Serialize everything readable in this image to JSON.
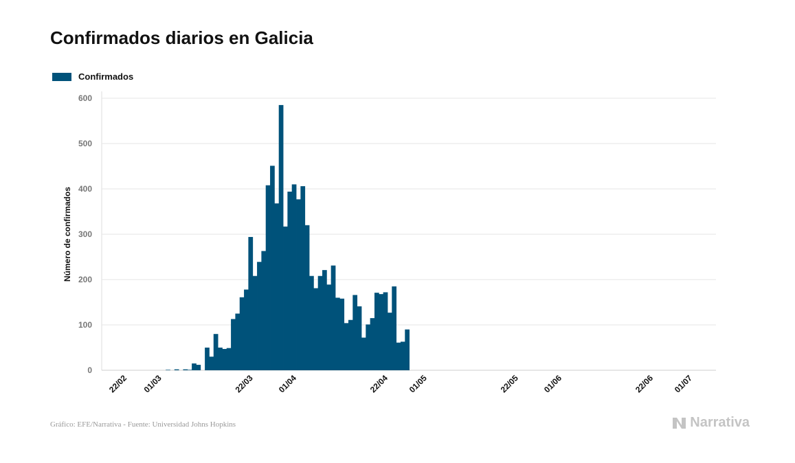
{
  "header": {
    "title": "Confirmados diarios en Galicia"
  },
  "legend": {
    "label": "Confirmados",
    "color": "#00527a"
  },
  "footer": {
    "source": "Gráfico: EFE/Narrativa - Fuente: Universidad Johns Hopkins",
    "brand": "Narrativa"
  },
  "chart_data": {
    "type": "bar",
    "title": "Confirmados diarios en Galicia",
    "ylabel": "Número de confirmados",
    "xlabel": "",
    "ylim": [
      0,
      600
    ],
    "yticks": [
      0,
      100,
      200,
      300,
      400,
      500,
      600
    ],
    "x_tick_labels": [
      "22/02",
      "01/03",
      "22/03",
      "01/04",
      "22/04",
      "01/05",
      "22/05",
      "01/06",
      "22/06",
      "01/07"
    ],
    "grid": true,
    "legend_position": "top-left",
    "color": "#00527a",
    "series": [
      {
        "name": "Confirmados",
        "dates": [
          "03/03",
          "04/03",
          "05/03",
          "06/03",
          "07/03",
          "08/03",
          "09/03",
          "10/03",
          "11/03",
          "12/03",
          "13/03",
          "14/03",
          "15/03",
          "16/03",
          "17/03",
          "18/03",
          "19/03",
          "20/03",
          "21/03",
          "22/03",
          "23/03",
          "24/03",
          "25/03",
          "26/03",
          "27/03",
          "28/03",
          "29/03",
          "30/03",
          "31/03",
          "01/04",
          "02/04",
          "03/04",
          "04/04",
          "05/04",
          "06/04",
          "07/04",
          "08/04",
          "09/04",
          "10/04",
          "11/04",
          "12/04",
          "13/04",
          "14/04",
          "15/04",
          "16/04",
          "17/04",
          "18/04",
          "19/04",
          "20/04",
          "21/04",
          "22/04",
          "23/04",
          "24/04",
          "25/04",
          "26/04",
          "27/04",
          "28/04",
          "29/04"
        ],
        "values": [
          1,
          0,
          2,
          0,
          2,
          1,
          15,
          12,
          0,
          50,
          30,
          80,
          50,
          47,
          49,
          113,
          125,
          161,
          178,
          294,
          208,
          239,
          263,
          408,
          451,
          368,
          585,
          317,
          394,
          410,
          377,
          406,
          320,
          208,
          181,
          208,
          221,
          189,
          231,
          160,
          158,
          104,
          111,
          166,
          141,
          72,
          101,
          115,
          171,
          168,
          172,
          127,
          185,
          61,
          63,
          90,
          0,
          0
        ]
      }
    ]
  }
}
